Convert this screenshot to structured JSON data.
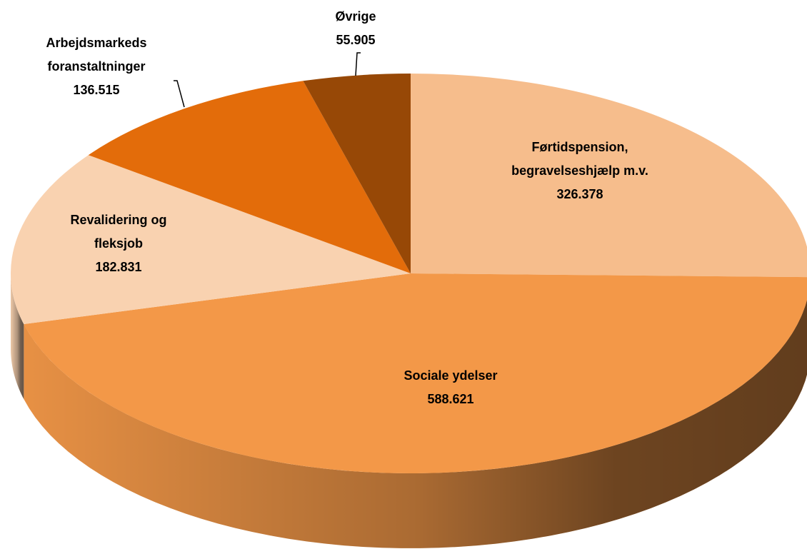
{
  "chart_data": {
    "type": "pie",
    "categories": [
      "Førtidspension, begravelseshjælp m.v.",
      "Sociale ydelser",
      "Revalidering og fleksjob",
      "Arbejdsmarkeds foranstaltninger",
      "Øvrige"
    ],
    "values": [
      326378,
      588621,
      182831,
      136515,
      55905
    ],
    "value_labels": [
      "326.378",
      "588.621",
      "182.831",
      "136.515",
      "55.905"
    ],
    "colors": [
      "#f6bd8c",
      "#f39848",
      "#f9d2b0",
      "#e36c0a",
      "#974806"
    ]
  }
}
